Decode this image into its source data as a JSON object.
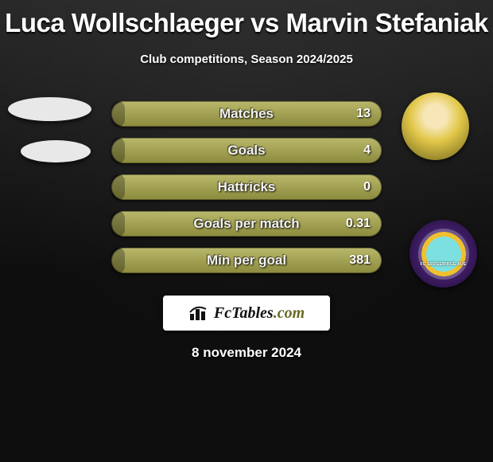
{
  "title": "Luca Wollschlaeger vs Marvin Stefaniak",
  "subtitle": "Club competitions, Season 2024/2025",
  "bar_color": "#aaa84a",
  "avatars": {
    "right_top_label": "player-photo",
    "right_bottom_label": "FC ERZGEBIRGE AUE"
  },
  "stats": [
    {
      "label": "Matches",
      "value": "13",
      "fill_pct": 5
    },
    {
      "label": "Goals",
      "value": "4",
      "fill_pct": 5
    },
    {
      "label": "Hattricks",
      "value": "0",
      "fill_pct": 5
    },
    {
      "label": "Goals per match",
      "value": "0.31",
      "fill_pct": 5
    },
    {
      "label": "Min per goal",
      "value": "381",
      "fill_pct": 5
    }
  ],
  "brand": {
    "name": "FcTables",
    "suffix": ".com"
  },
  "date": "8 november 2024"
}
